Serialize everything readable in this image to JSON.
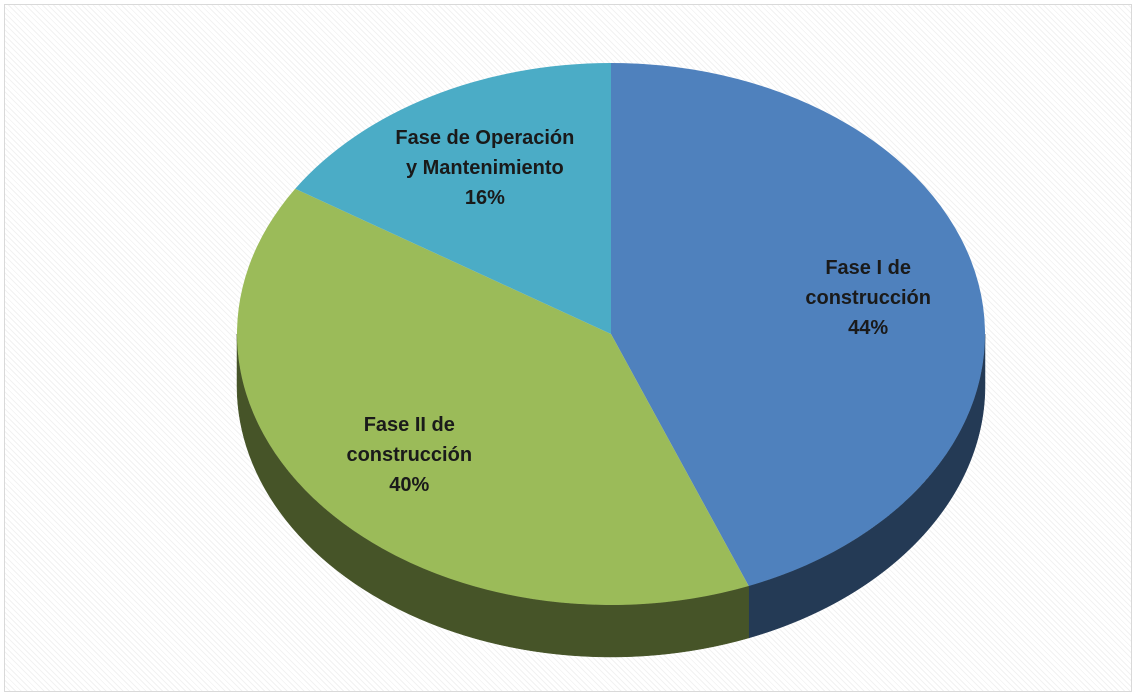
{
  "chart_data": {
    "type": "pie",
    "categories": [
      "Fase I de construcción",
      "Fase II de construcción",
      "Fase de Operación y Mantenimiento"
    ],
    "values": [
      44,
      40,
      16
    ],
    "value_labels": [
      "44%",
      "40%",
      "16%"
    ],
    "colors": [
      "#4f81bd",
      "#9bbb59",
      "#4bacc6"
    ]
  }
}
